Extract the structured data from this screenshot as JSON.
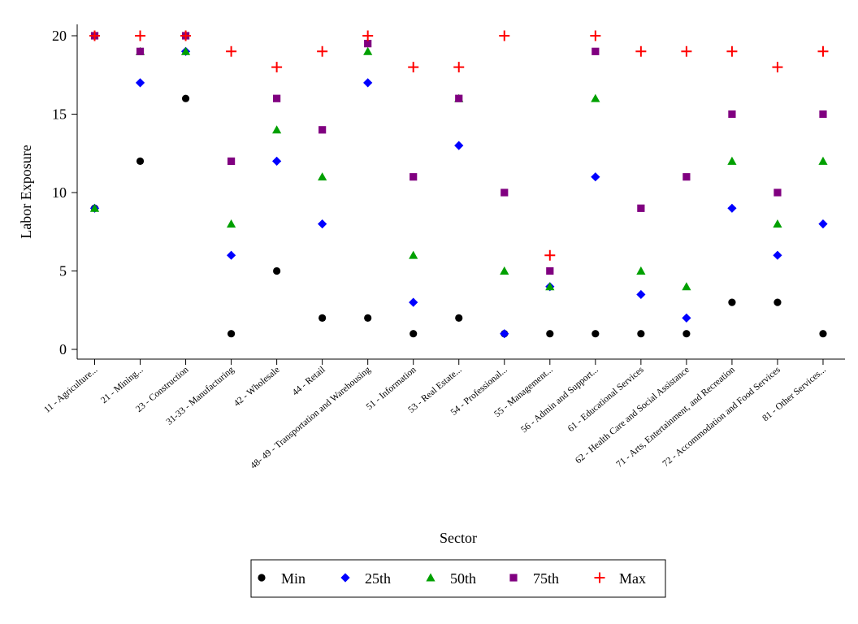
{
  "chart_data": {
    "type": "scatter",
    "xlabel": "Sector",
    "ylabel": "Labor Exposure",
    "ylim": [
      -1,
      20.5
    ],
    "yticks": [
      0,
      5,
      10,
      15,
      20
    ],
    "grid": false,
    "legend_position": "bottom",
    "categories": [
      "11 - Agriculture...",
      "21 - Mining...",
      "23 - Construction",
      "31-33 - Manufacturing",
      "42 - Wholesale",
      "44 - Retail",
      "48- 49 - Transportation and Warehousing",
      "51 - Information",
      "53 - Real Estate...",
      "54 - Professional...",
      "55 - Management...",
      "56 - Admin and Support...",
      "61 - Educational Services",
      "62 - Health Care and Social Assistance",
      "71 - Arts, Entertainment, and Recreation",
      "72 - Accommodation and Food Services",
      "81 - Other Services..."
    ],
    "series": [
      {
        "name": "Min",
        "marker": "circle",
        "color": "#000000",
        "values": [
          9,
          12,
          16,
          1,
          5,
          2,
          2,
          1,
          2,
          1,
          1,
          1,
          1,
          1,
          3,
          3,
          1
        ]
      },
      {
        "name": "25th",
        "marker": "diamond",
        "color": "#0000ff",
        "values": [
          9,
          17,
          19,
          6,
          12,
          8,
          17,
          3,
          13,
          1,
          4,
          11,
          3.5,
          2,
          9,
          6,
          8
        ]
      },
      {
        "name": "50th",
        "marker": "triangle",
        "color": "#00a000",
        "values": [
          9,
          19,
          19,
          8,
          14,
          11,
          19,
          6,
          16,
          5,
          4,
          16,
          5,
          4,
          12,
          8,
          12
        ]
      },
      {
        "name": "75th",
        "marker": "square",
        "color": "#800080",
        "values": [
          20,
          19,
          20,
          12,
          16,
          14,
          19.5,
          11,
          16,
          10,
          5,
          19,
          9,
          11,
          15,
          10,
          15
        ]
      },
      {
        "name": "Max",
        "marker": "plus",
        "color": "#ff0000",
        "values": [
          20,
          20,
          20,
          19,
          18,
          19,
          20,
          18,
          18,
          20,
          6,
          20,
          19,
          19,
          19,
          18,
          19
        ]
      }
    ]
  }
}
